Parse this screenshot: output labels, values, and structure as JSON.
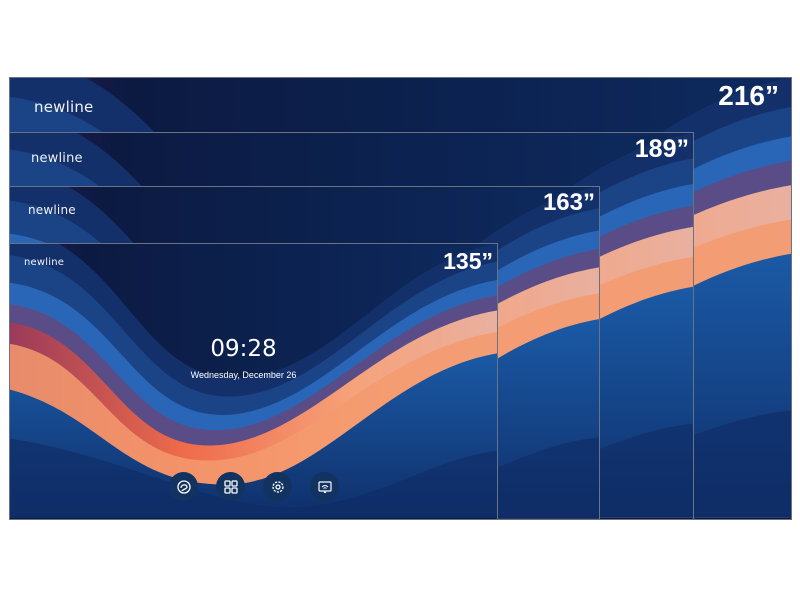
{
  "brand": "newline",
  "screens": [
    {
      "size_label": "216”"
    },
    {
      "size_label": "189”"
    },
    {
      "size_label": "163”"
    },
    {
      "size_label": "135”"
    }
  ],
  "home": {
    "time": "09:28",
    "date": "Wednesday, December 26",
    "dock": [
      {
        "icon": "whiteboard-icon"
      },
      {
        "icon": "apps-grid-icon"
      },
      {
        "icon": "settings-gear-icon"
      },
      {
        "icon": "screen-cast-icon"
      }
    ]
  },
  "colors": {
    "background": "#0b1a3e",
    "wave_orange": "#f07a4e",
    "wave_peach": "#f4a67a",
    "wave_blue": "#1a4f92"
  }
}
